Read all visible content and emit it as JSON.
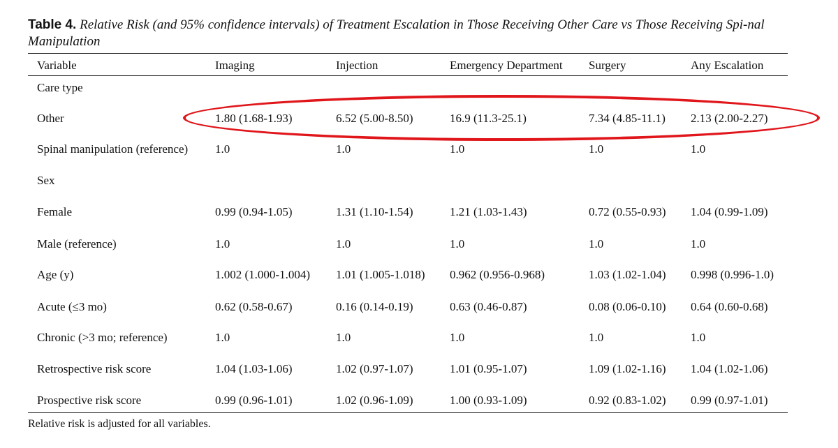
{
  "caption": {
    "label": "Table 4.",
    "text": "Relative Risk (and 95% confidence intervals) of Treatment Escalation in Those Receiving Other Care vs Those Receiving Spi-nal Manipulation"
  },
  "table": {
    "headers": [
      "Variable",
      "Imaging",
      "Injection",
      "Emergency Department",
      "Surgery",
      "Any Escalation"
    ],
    "rows": [
      {
        "label": "Care type",
        "values": []
      },
      {
        "label": "Other",
        "values": [
          "1.80 (1.68-1.93)",
          "6.52 (5.00-8.50)",
          "16.9 (11.3-25.1)",
          "7.34 (4.85-11.1)",
          "2.13 (2.00-2.27)"
        ]
      },
      {
        "label": "Spinal manipulation (reference)",
        "values": [
          "1.0",
          "1.0",
          "1.0",
          "1.0",
          "1.0"
        ]
      },
      {
        "label": "Sex",
        "values": []
      },
      {
        "label": "Female",
        "values": [
          "0.99 (0.94-1.05)",
          "1.31 (1.10-1.54)",
          "1.21 (1.03-1.43)",
          "0.72 (0.55-0.93)",
          "1.04 (0.99-1.09)"
        ]
      },
      {
        "label": "Male (reference)",
        "values": [
          "1.0",
          "1.0",
          "1.0",
          "1.0",
          "1.0"
        ]
      },
      {
        "label": "Age (y)",
        "values": [
          "1.002 (1.000-1.004)",
          "1.01 (1.005-1.018)",
          "0.962 (0.956-0.968)",
          "1.03 (1.02-1.04)",
          "0.998 (0.996-1.0)"
        ]
      },
      {
        "label": "Acute (≤3 mo)",
        "values": [
          "0.62 (0.58-0.67)",
          "0.16 (0.14-0.19)",
          "0.63 (0.46-0.87)",
          "0.08 (0.06-0.10)",
          "0.64 (0.60-0.68)"
        ]
      },
      {
        "label": "Chronic (>3 mo; reference)",
        "values": [
          "1.0",
          "1.0",
          "1.0",
          "1.0",
          "1.0"
        ]
      },
      {
        "label": "Retrospective risk score",
        "values": [
          "1.04 (1.03-1.06)",
          "1.02 (0.97-1.07)",
          "1.01 (0.95-1.07)",
          "1.09 (1.02-1.16)",
          "1.04 (1.02-1.06)"
        ]
      },
      {
        "label": "Prospective risk score",
        "values": [
          "0.99 (0.96-1.01)",
          "1.02 (0.96-1.09)",
          "1.00 (0.93-1.09)",
          "0.92 (0.83-1.02)",
          "0.99 (0.97-1.01)"
        ]
      }
    ]
  },
  "footnote": "Relative risk is adjusted for all variables.",
  "annotation": {
    "color": "#e0161b"
  }
}
